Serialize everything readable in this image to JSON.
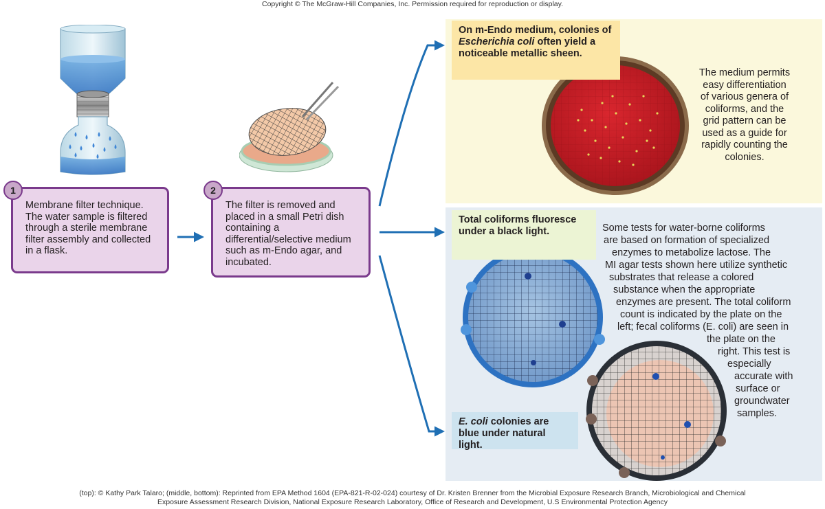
{
  "header": {
    "copyright": "Copyright © The McGraw-Hill Companies, Inc. Permission required for reproduction or display."
  },
  "steps": [
    {
      "number": "1",
      "text": "Membrane filter technique. The water sample is filtered through a sterile membrane filter assembly and collected in a flask."
    },
    {
      "number": "2",
      "text": "The filter is removed and placed in a small Petri dish containing a differential/selective medium such as m-Endo agar, and incubated."
    }
  ],
  "callouts": {
    "mendo": {
      "prefix": "On m-Endo medium, colonies of ",
      "species": "Escherichia coli",
      "suffix": " often yield a noticeable metallic sheen."
    },
    "fluoresce": {
      "text": "Total coliforms fluoresce under a black light."
    },
    "ecoli_blue": {
      "species": "E. coli",
      "suffix": " colonies are blue under natural light."
    }
  },
  "descriptions": {
    "mendo_lines": [
      "The medium permits",
      "easy differentiation",
      "of various genera of",
      "coliforms, and the",
      "grid pattern can be",
      "used as a guide for",
      "rapidly counting the",
      "colonies."
    ],
    "mi_lines": [
      "Some tests for water-borne coliforms",
      "are based on formation of specialized",
      "enzymes to metabolize lactose. The",
      "MI agar tests shown here utilize synthetic",
      "substrates that release a colored",
      "substance when the appropriate",
      "enzymes are present. The total coliform",
      "count is indicated by the plate on the",
      "left; fecal coliforms (E. coli) are seen in",
      "the plate on the",
      "right. This test is",
      "especially",
      "accurate with",
      "surface or",
      "groundwater",
      "samples."
    ]
  },
  "credits": "(top): © Kathy Park Talaro; (middle, bottom): Reprinted from EPA Method 1604 (EPA-821-R-02-024) courtesy of Dr. Kristen Brenner from the Microbial Exposure Research Branch, Microbiological and Chemical\nExposure Assessment Research  Division, National Exposure Research Laboratory, Office of Research and Development, U.S Environmental Protection Agency",
  "colors": {
    "step_border": "#7a3a8c",
    "step_fill": "#ead4ea",
    "arrow": "#1f6fb4",
    "mendo_agar": "#c8202a",
    "fluor_plate": "#2d72c2",
    "callout_yellow": "#fce6a6",
    "callout_green": "#ecf4d4",
    "callout_blue": "#cde3ef"
  }
}
